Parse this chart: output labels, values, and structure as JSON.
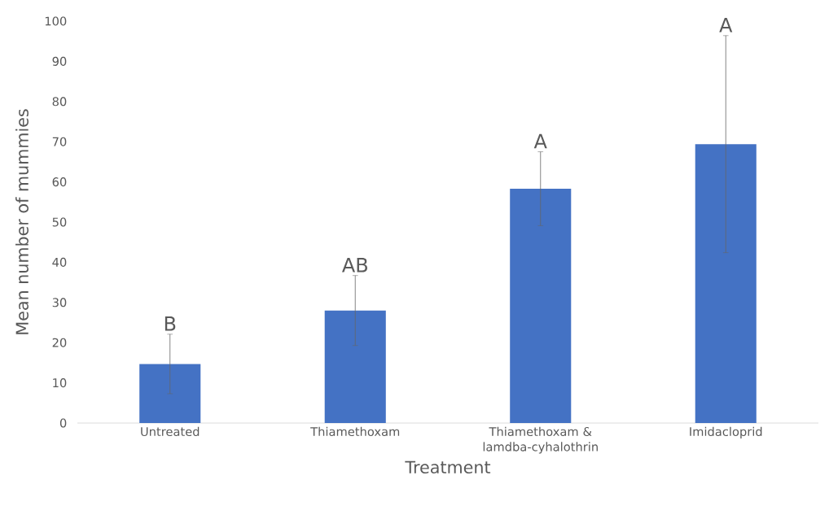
{
  "chart_data": {
    "type": "bar",
    "categories": [
      "Untreated",
      "Thiamethoxam",
      "Thiamethoxam & lamdba-cyhalothrin",
      "Imidacloprid"
    ],
    "values": [
      14.7,
      28,
      58.3,
      69.4
    ],
    "errors": [
      7.4,
      8.7,
      9.2,
      27
    ],
    "color": "#4472c4",
    "xlabel": "Treatment",
    "ylabel": "Mean number of mummies",
    "ylim": [
      0,
      100
    ],
    "yticks": [
      0,
      10,
      20,
      30,
      40,
      50,
      60,
      70,
      80,
      90,
      100
    ],
    "annotations": [
      {
        "text": "B",
        "x": "Untreated",
        "y": 22.1
      },
      {
        "text": "AB",
        "x": "Thiamethoxam",
        "y": 36.7
      },
      {
        "text": "A",
        "x": "Thiamethoxam & lamdba-cyhalothrin",
        "y": 67.5
      },
      {
        "text": "A",
        "x": "Imidacloprid",
        "y": 96.4
      }
    ]
  }
}
